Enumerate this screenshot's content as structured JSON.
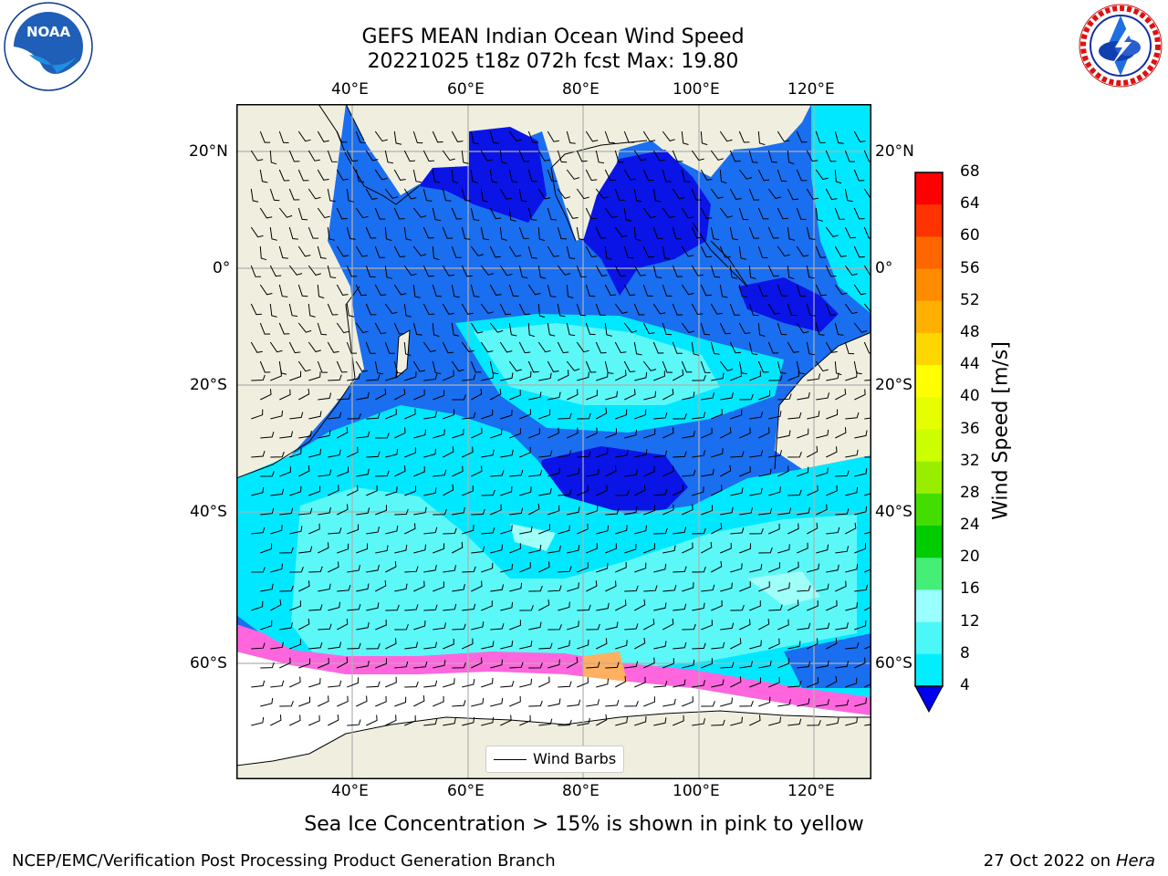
{
  "title_line1": "GEFS MEAN Indian Ocean Wind Speed",
  "title_line2": "20221025 t18z 072h fcst   Max: 19.80",
  "caption": "Sea Ice Concentration > 15% is shown in pink to yellow",
  "footer_left": "NCEP/EMC/Verification Post Processing Product Generation Branch",
  "footer_date": "27 Oct 2022 on ",
  "footer_machine": "Hera",
  "map": {
    "lon_ticks": [
      "40°E",
      "60°E",
      "80°E",
      "100°E",
      "120°E"
    ],
    "lat_ticks": [
      "20°N",
      "0°",
      "20°S",
      "40°S",
      "60°S"
    ],
    "legend_label": "Wind Barbs"
  },
  "colorbar": {
    "label": "Wind Speed [m/s]",
    "ticks": [
      "68",
      "64",
      "60",
      "56",
      "52",
      "48",
      "44",
      "40",
      "36",
      "32",
      "28",
      "24",
      "20",
      "16",
      "12",
      "8",
      "4"
    ],
    "colors": [
      "#ff0000",
      "#ff3300",
      "#ff6600",
      "#ff8c00",
      "#ffb000",
      "#ffd700",
      "#ffff00",
      "#e6ff00",
      "#ccff00",
      "#99ee00",
      "#44dd00",
      "#00cc00",
      "#44ee77",
      "#99ffff",
      "#4cf7f7",
      "#00eeff",
      "#0077ff"
    ],
    "extend_color": "#0000ee"
  },
  "logos": {
    "left": "NOAA",
    "right": "NATIONAL WEATHER SERVICE"
  },
  "colors": {
    "land": "#f0efdf",
    "speed_4_8": "#1a6ef0",
    "speed_0_4": "#0a14e6",
    "speed_8_12": "#00e8ff",
    "speed_12_16": "#5cf8f8",
    "speed_16_20": "#a0fff8",
    "ice": "#ffffff",
    "ice_edge": "#ff66dd"
  }
}
